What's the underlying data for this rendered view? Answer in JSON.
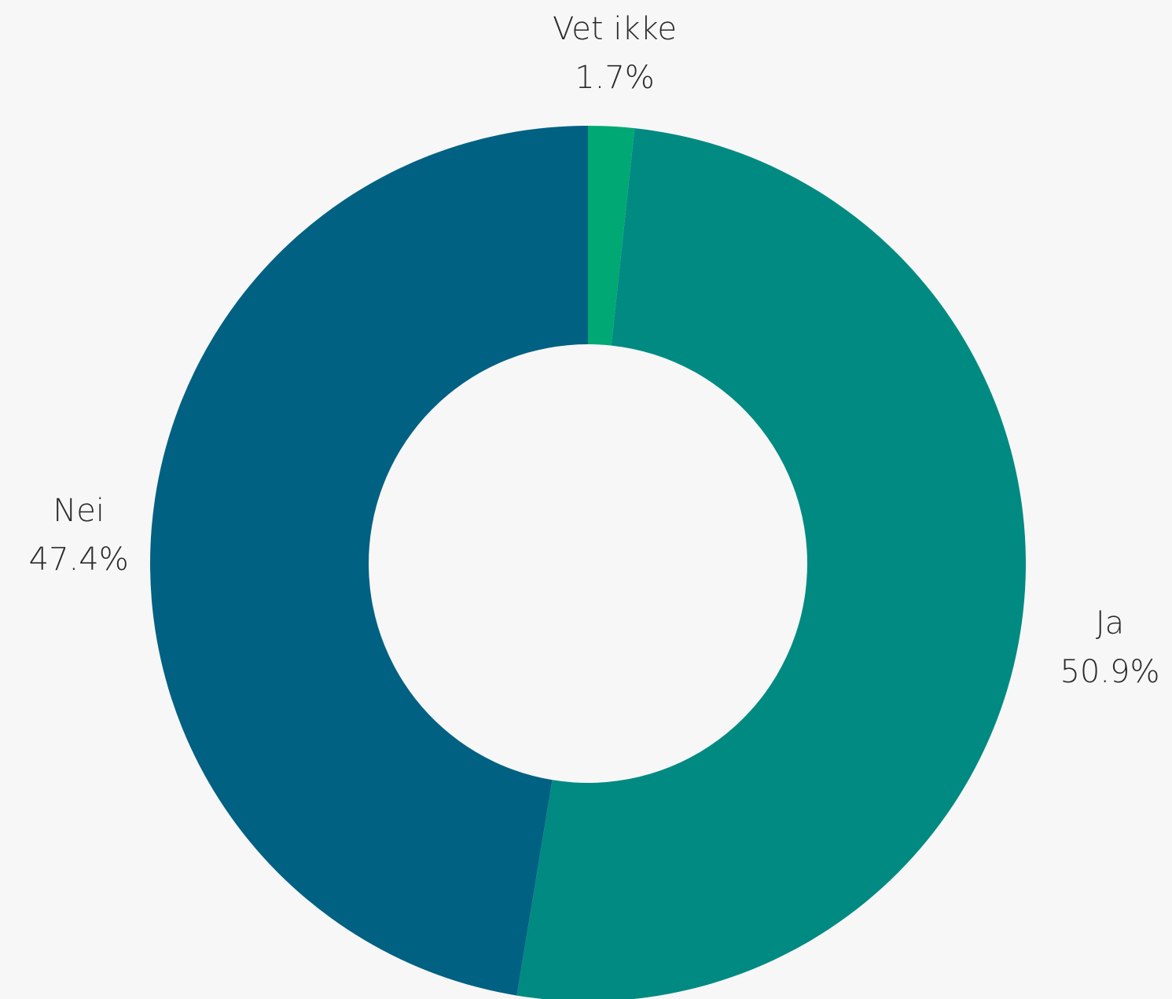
{
  "chart_data": {
    "type": "pie",
    "donut": true,
    "slices": [
      {
        "label": "Vet ikke",
        "value": 1.7,
        "value_label": "1.7%",
        "color": "#00a874"
      },
      {
        "label": "Ja",
        "value": 50.9,
        "value_label": "50.9%",
        "color": "#008a82"
      },
      {
        "label": "Nei",
        "value": 47.4,
        "value_label": "47.4%",
        "color": "#006182"
      }
    ]
  }
}
